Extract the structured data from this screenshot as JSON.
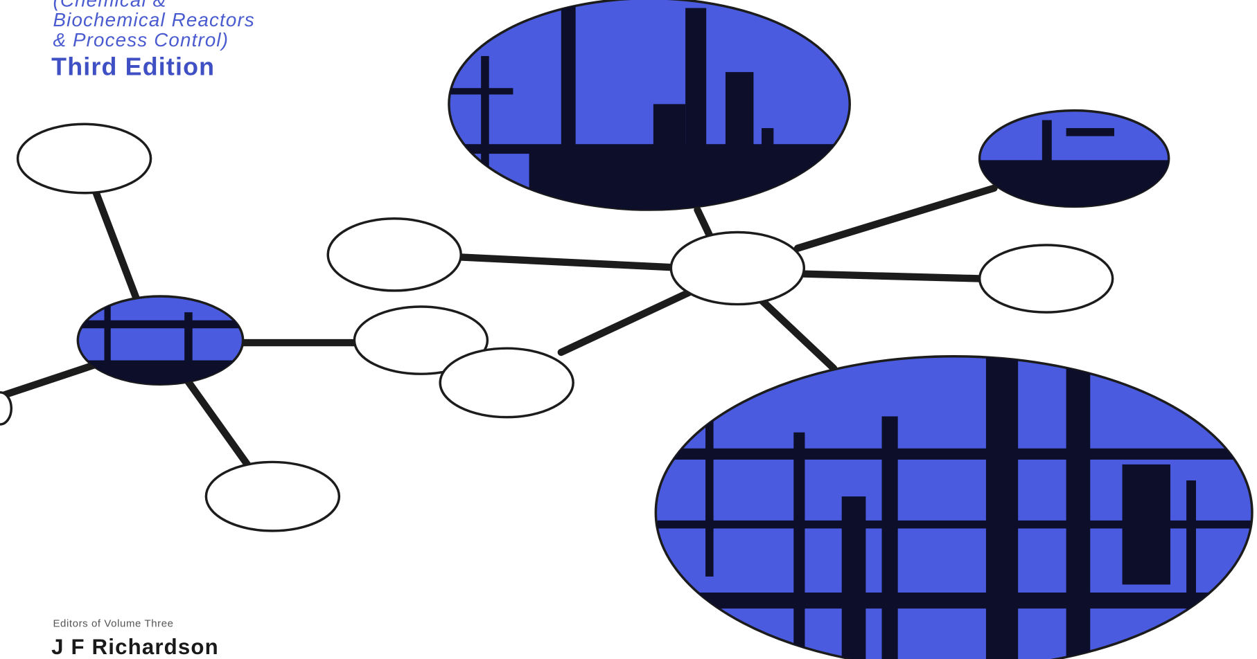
{
  "cover": {
    "subtitle_lines": [
      "(Chemical &",
      "Biochemical Reactors",
      "& Process Control)"
    ],
    "edition": "Third Edition",
    "editors_label": "Editors of Volume Three",
    "editor": "J F Richardson"
  }
}
